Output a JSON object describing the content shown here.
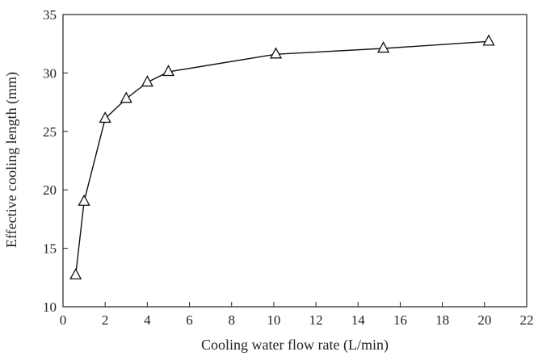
{
  "chart_data": {
    "type": "line",
    "title": "",
    "xlabel": "Cooling water flow rate (L/min)",
    "ylabel": "Effective cooling length (mm)",
    "xlim": [
      0,
      22
    ],
    "ylim": [
      10,
      35
    ],
    "xticks": [
      0,
      2,
      4,
      6,
      8,
      10,
      12,
      14,
      16,
      18,
      20,
      22
    ],
    "yticks": [
      10,
      15,
      20,
      25,
      30,
      35
    ],
    "grid": false,
    "marker": "triangle-open",
    "series": [
      {
        "name": "Effective cooling length",
        "x": [
          0.6,
          1.0,
          2.0,
          3.0,
          4.0,
          5.0,
          10.1,
          15.2,
          20.2
        ],
        "y": [
          12.7,
          19.0,
          26.1,
          27.8,
          29.2,
          30.1,
          31.6,
          32.1,
          32.7
        ]
      }
    ]
  }
}
